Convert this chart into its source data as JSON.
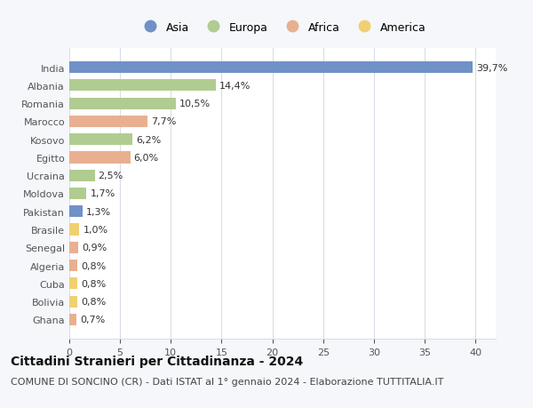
{
  "countries": [
    "India",
    "Albania",
    "Romania",
    "Marocco",
    "Kosovo",
    "Egitto",
    "Ucraina",
    "Moldova",
    "Pakistan",
    "Brasile",
    "Senegal",
    "Algeria",
    "Cuba",
    "Bolivia",
    "Ghana"
  ],
  "values": [
    39.7,
    14.4,
    10.5,
    7.7,
    6.2,
    6.0,
    2.5,
    1.7,
    1.3,
    1.0,
    0.9,
    0.8,
    0.8,
    0.8,
    0.7
  ],
  "labels": [
    "39,7%",
    "14,4%",
    "10,5%",
    "7,7%",
    "6,2%",
    "6,0%",
    "2,5%",
    "1,7%",
    "1,3%",
    "1,0%",
    "0,9%",
    "0,8%",
    "0,8%",
    "0,8%",
    "0,7%"
  ],
  "continents": [
    "Asia",
    "Europa",
    "Europa",
    "Africa",
    "Europa",
    "Africa",
    "Europa",
    "Europa",
    "Asia",
    "America",
    "Africa",
    "Africa",
    "America",
    "America",
    "Africa"
  ],
  "colors": {
    "Asia": "#7090c8",
    "Europa": "#b0cc90",
    "Africa": "#e8b090",
    "America": "#f0d070"
  },
  "xlim": [
    0,
    42
  ],
  "xticks": [
    0,
    5,
    10,
    15,
    20,
    25,
    30,
    35,
    40
  ],
  "title": "Cittadini Stranieri per Cittadinanza - 2024",
  "subtitle": "COMUNE DI SONCINO (CR) - Dati ISTAT al 1° gennaio 2024 - Elaborazione TUTTITALIA.IT",
  "bg_color": "#f5f7fa",
  "plot_bg_color": "#ffffff",
  "grid_color": "#d8dde8",
  "title_fontsize": 10,
  "subtitle_fontsize": 8,
  "label_fontsize": 8,
  "tick_fontsize": 8,
  "legend_order": [
    "Asia",
    "Europa",
    "Africa",
    "America"
  ]
}
